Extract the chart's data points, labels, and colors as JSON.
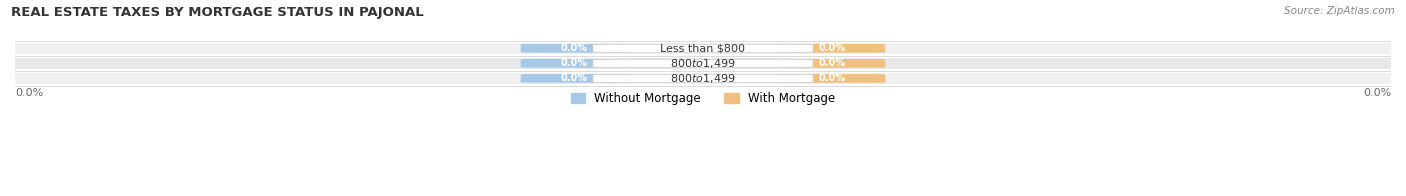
{
  "title": "REAL ESTATE TAXES BY MORTGAGE STATUS IN PAJONAL",
  "source": "Source: ZipAtlas.com",
  "categories": [
    "Less than $800",
    "$800 to $1,499",
    "$800 to $1,499"
  ],
  "without_mortgage": [
    0.0,
    0.0,
    0.0
  ],
  "with_mortgage": [
    0.0,
    0.0,
    0.0
  ],
  "without_mortgage_color": "#a8c8e8",
  "with_mortgage_color": "#f0c080",
  "row_colors": [
    "#f0f0f0",
    "#e8e8e8",
    "#f0f0f0"
  ],
  "legend_without": "Without Mortgage",
  "legend_with": "With Mortgage",
  "figsize": [
    14.06,
    1.96
  ],
  "dpi": 100
}
